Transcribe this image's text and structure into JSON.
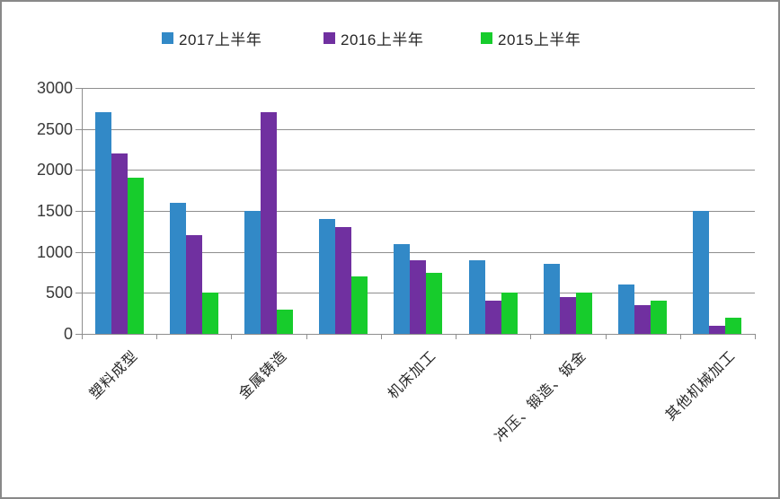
{
  "colors": {
    "frame_border": "#898989",
    "gridline": "#8e8e8e",
    "axis": "#8e8e8e",
    "text": "#262626",
    "series_2017": "#3289c7",
    "series_2016": "#7030a0",
    "series_2015": "#17cc2c"
  },
  "legend": {
    "items": [
      {
        "label": "2017上半年",
        "color": "#3289c7"
      },
      {
        "label": "2016上半年",
        "color": "#7030a0"
      },
      {
        "label": "2015上半年",
        "color": "#17cc2c"
      }
    ]
  },
  "chart_data": {
    "type": "bar",
    "title": "",
    "xlabel": "",
    "ylabel": "",
    "ylim": [
      0,
      3000
    ],
    "ytick_step": 500,
    "ytick_labels": [
      "0",
      "500",
      "1000",
      "1500",
      "2000",
      "2500",
      "3000"
    ],
    "grid": true,
    "legend_position": "top",
    "categories": [
      "塑料成型",
      "",
      "金属铸造",
      "",
      "机床加工",
      "",
      "冲压、锻造、钣金",
      "",
      "其他机械加工"
    ],
    "series": [
      {
        "name": "2017上半年",
        "color": "#3289c7",
        "values": [
          2700,
          1600,
          1500,
          1400,
          1100,
          900,
          850,
          600,
          1500
        ]
      },
      {
        "name": "2016上半年",
        "color": "#7030a0",
        "values": [
          2200,
          1200,
          2700,
          1300,
          900,
          400,
          450,
          350,
          100
        ]
      },
      {
        "name": "2015上半年",
        "color": "#17cc2c",
        "values": [
          1900,
          500,
          300,
          700,
          750,
          500,
          500,
          400,
          200
        ]
      }
    ]
  }
}
